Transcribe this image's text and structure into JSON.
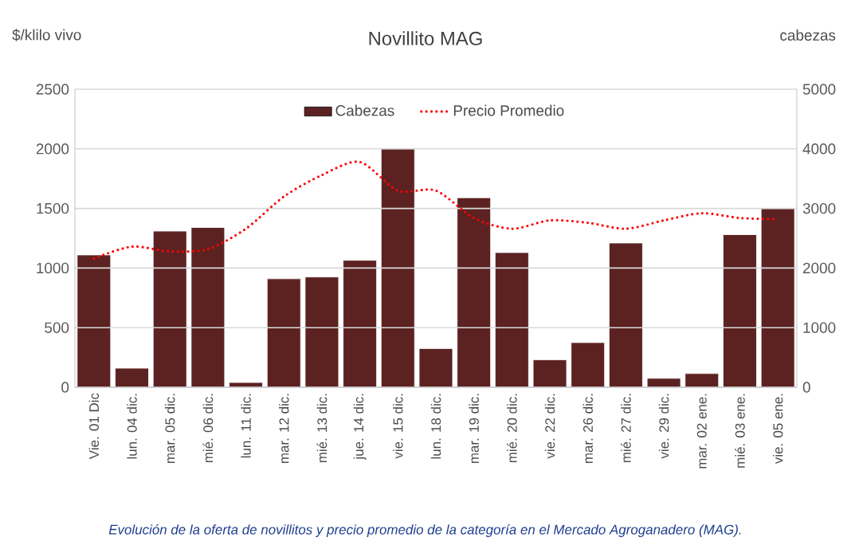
{
  "chart_data": {
    "type": "bar",
    "title": "Novillito MAG",
    "ylabel": "$/klilo vivo",
    "y2label": "cabezas",
    "categories": [
      "Vie. 01 Dic",
      "lun. 04 dic.",
      "mar. 05 dic.",
      "mié. 06 dic.",
      "lun. 11 dic.",
      "mar. 12 dic.",
      "mié. 13 dic.",
      "jue. 14 dic.",
      "vie. 15 dic.",
      "lun. 18 dic.",
      "mar. 19 dic.",
      "mié. 20 dic.",
      "vie. 22 dic.",
      "mar. 26 dic.",
      "mié. 27 dic.",
      "vie. 29 dic.",
      "mar. 02 ene.",
      "mié. 03 ene.",
      "vie. 05 ene."
    ],
    "series": [
      {
        "name": "Cabezas",
        "axis": "y2",
        "color": "#5c2222",
        "values": [
          2220,
          320,
          2620,
          2680,
          80,
          1820,
          1850,
          2130,
          4000,
          650,
          3180,
          2260,
          460,
          750,
          2420,
          150,
          230,
          2560,
          3000
        ]
      },
      {
        "name": "Precio Promedio",
        "type": "line",
        "color": "#ff0000",
        "line_style": "dotted",
        "values": [
          1080,
          1180,
          1140,
          1160,
          1330,
          1600,
          1780,
          1890,
          1650,
          1650,
          1420,
          1330,
          1400,
          1380,
          1330,
          1400,
          1460,
          1420,
          1410
        ]
      }
    ],
    "ylim": [
      0,
      2500
    ],
    "yticks": [
      0,
      500,
      1000,
      1500,
      2000,
      2500
    ],
    "y2lim": [
      0,
      5000
    ],
    "y2ticks": [
      0,
      1000,
      2000,
      3000,
      4000,
      5000
    ],
    "grid": "y",
    "legend": "top",
    "marker": "none",
    "annotations": [
      "Evolución de la oferta de novillitos y precio promedio de la categoría en el Mercado Agroganadero (MAG)."
    ]
  }
}
